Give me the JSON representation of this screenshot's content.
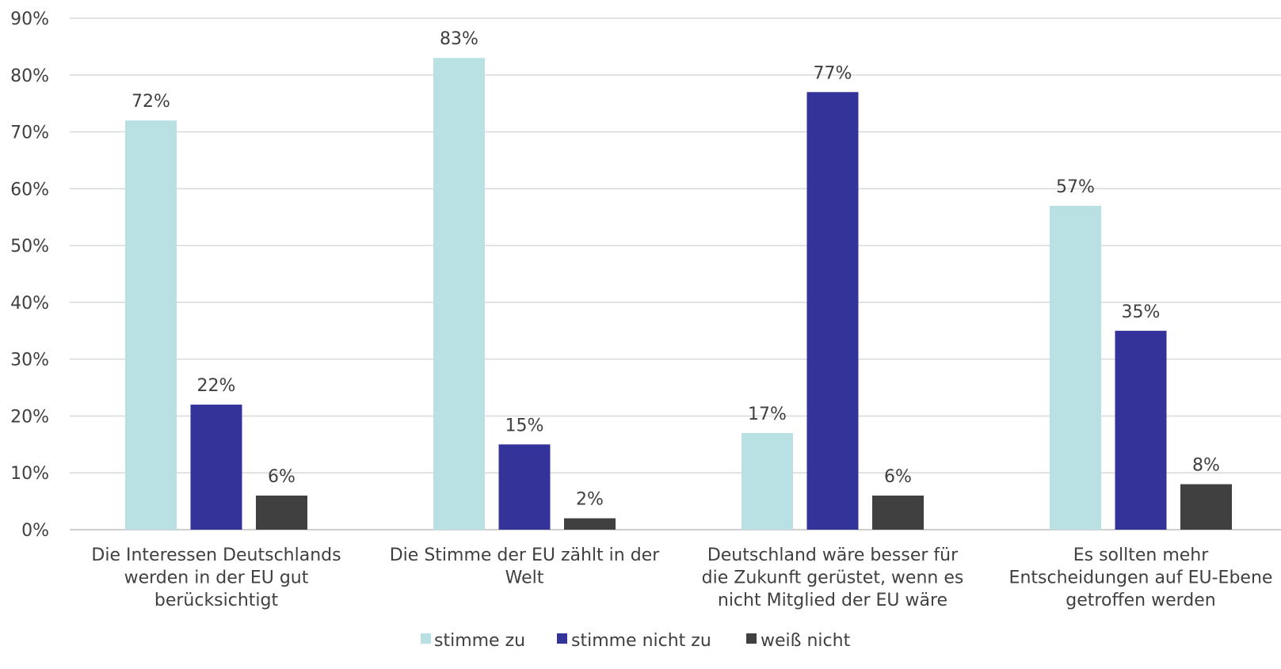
{
  "chart_data": {
    "type": "bar",
    "categories": [
      [
        "Die Interessen Deutschlands",
        "werden in der EU gut",
        "berücksichtigt"
      ],
      [
        "Die Stimme der EU zählt in der",
        "Welt"
      ],
      [
        "Deutschland wäre besser für",
        "die Zukunft gerüstet, wenn es",
        "nicht Mitglied der EU wäre"
      ],
      [
        "Es sollten mehr",
        "Entscheidungen auf EU-Ebene",
        "getroffen werden"
      ]
    ],
    "series": [
      {
        "name": "stimme zu",
        "color": "#b9e0e3",
        "values": [
          72,
          83,
          17,
          57
        ],
        "labels": [
          "72%",
          "83%",
          "17%",
          "57%"
        ]
      },
      {
        "name": "stimme nicht zu",
        "color": "#333399",
        "values": [
          22,
          15,
          77,
          35
        ],
        "labels": [
          "22%",
          "15%",
          "77%",
          "35%"
        ]
      },
      {
        "name": "weiß nicht",
        "color": "#404040",
        "values": [
          6,
          2,
          6,
          8
        ],
        "labels": [
          "6%",
          "2%",
          "6%",
          "8%"
        ]
      }
    ],
    "ylim": [
      0,
      90
    ],
    "yticks": [
      0,
      10,
      20,
      30,
      40,
      50,
      60,
      70,
      80,
      90
    ],
    "ytick_labels": [
      "0%",
      "10%",
      "20%",
      "30%",
      "40%",
      "50%",
      "60%",
      "70%",
      "80%",
      "90%"
    ],
    "grid": true,
    "legend": "bottom",
    "title": "",
    "xlabel": "",
    "ylabel": ""
  }
}
